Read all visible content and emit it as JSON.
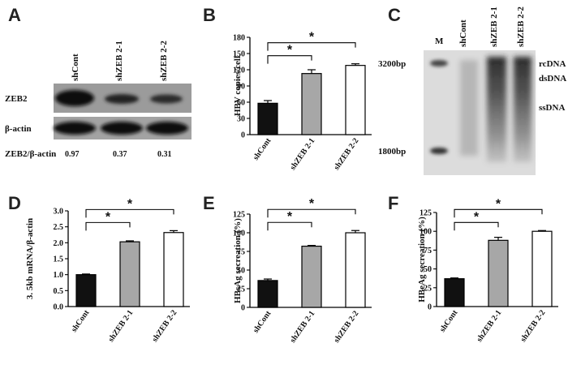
{
  "figure": {
    "panel_labels": [
      "A",
      "B",
      "C",
      "D",
      "E",
      "F"
    ],
    "panel_a": {
      "lanes": [
        "shCont",
        "shZEB 2-1",
        "shZEB 2-2"
      ],
      "rows": [
        "ZEB2",
        "β-actin"
      ],
      "ratio_label": "ZEB2/β-actin",
      "ratios": [
        "0.97",
        "0.37",
        "0.31"
      ]
    },
    "panel_c": {
      "lanes": [
        "M",
        "shCont",
        "shZEB 2-1",
        "shZEB 2-2"
      ],
      "markers": [
        "3200bp",
        "1800bp"
      ],
      "forms": [
        "rcDNA",
        "dsDNA",
        "ssDNA"
      ]
    },
    "significance": "*"
  },
  "chart_data": [
    {
      "panel": "B",
      "type": "bar",
      "categories": [
        "shCont",
        "shZEB 2-1",
        "shZEB 2-2"
      ],
      "values": [
        58,
        113,
        128
      ],
      "errors": [
        5,
        7,
        3
      ],
      "ylabel": "HBV copies/cell",
      "ylim": [
        0,
        180
      ],
      "yticks": [
        0,
        30,
        60,
        90,
        120,
        150,
        180
      ]
    },
    {
      "panel": "D",
      "type": "bar",
      "categories": [
        "shCont",
        "shZEB 2-1",
        "shZEB 2-2"
      ],
      "values": [
        1.0,
        2.03,
        2.32
      ],
      "errors": [
        0.02,
        0.03,
        0.06
      ],
      "ylabel": "3. 5kb mRNA/β-actin",
      "ylim": [
        0,
        3.0
      ],
      "yticks": [
        "0.0",
        "0.5",
        "1.0",
        "1.5",
        "2.0",
        "2.5",
        "3.0"
      ]
    },
    {
      "panel": "E",
      "type": "bar",
      "categories": [
        "shCont",
        "shZEB 2-1",
        "shZEB 2-2"
      ],
      "values": [
        36,
        82,
        100
      ],
      "errors": [
        2,
        1,
        3
      ],
      "ylabel": "HBsAg   secreation (%)",
      "ylim": [
        0,
        125
      ],
      "yticks": [
        0,
        25,
        50,
        75,
        100,
        125
      ]
    },
    {
      "panel": "F",
      "type": "bar",
      "categories": [
        "shCont",
        "shZEB 2-1",
        "shZEB 2-2"
      ],
      "values": [
        37,
        88,
        100
      ],
      "errors": [
        1,
        4,
        1
      ],
      "ylabel": "HBeAg   secreation (%)",
      "ylim": [
        0,
        125
      ],
      "yticks": [
        0,
        25,
        50,
        75,
        100,
        125
      ]
    }
  ],
  "colors": {
    "bar1": "#111111",
    "bar2": "#a7a7a7",
    "bar3": "#ffffff"
  }
}
